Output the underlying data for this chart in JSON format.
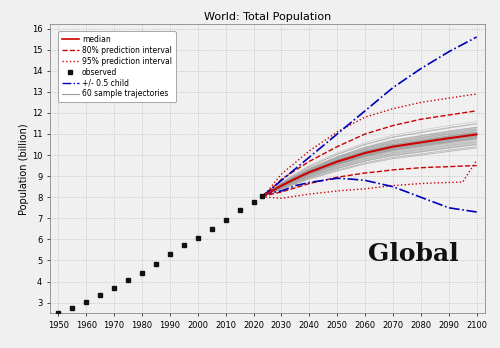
{
  "title": "World: Total Population",
  "ylabel": "Population (billion)",
  "xlim": [
    1947,
    2103
  ],
  "ylim": [
    2.5,
    16.2
  ],
  "xticks": [
    1950,
    1960,
    1970,
    1980,
    1990,
    2000,
    2010,
    2020,
    2030,
    2040,
    2050,
    2060,
    2070,
    2080,
    2090,
    2100
  ],
  "yticks": [
    3,
    4,
    5,
    6,
    7,
    8,
    9,
    10,
    11,
    12,
    13,
    14,
    15,
    16
  ],
  "observed_years": [
    1950,
    1955,
    1960,
    1965,
    1970,
    1975,
    1980,
    1985,
    1990,
    1995,
    2000,
    2005,
    2010,
    2015,
    2020,
    2023
  ],
  "observed_pop": [
    2.53,
    2.77,
    3.02,
    3.34,
    3.7,
    4.07,
    4.43,
    4.83,
    5.31,
    5.72,
    6.09,
    6.51,
    6.92,
    7.38,
    7.79,
    8.04
  ],
  "forecast_years": [
    2023,
    2025,
    2030,
    2035,
    2040,
    2045,
    2050,
    2055,
    2060,
    2065,
    2070,
    2075,
    2080,
    2085,
    2090,
    2095,
    2100
  ],
  "median": [
    8.04,
    8.18,
    8.55,
    8.88,
    9.19,
    9.44,
    9.69,
    9.89,
    10.1,
    10.25,
    10.4,
    10.5,
    10.6,
    10.7,
    10.8,
    10.89,
    10.98
  ],
  "pi80_upper": [
    8.04,
    8.22,
    8.85,
    9.28,
    9.7,
    10.05,
    10.4,
    10.7,
    11.0,
    11.2,
    11.4,
    11.55,
    11.7,
    11.8,
    11.9,
    12.0,
    12.1
  ],
  "pi80_lower": [
    8.04,
    8.1,
    8.25,
    8.45,
    8.65,
    8.8,
    8.95,
    9.05,
    9.15,
    9.22,
    9.3,
    9.35,
    9.4,
    9.43,
    9.45,
    9.48,
    9.5
  ],
  "pi95_upper": [
    8.04,
    8.28,
    9.1,
    9.65,
    10.2,
    10.65,
    11.1,
    11.45,
    11.8,
    12.0,
    12.2,
    12.35,
    12.5,
    12.6,
    12.7,
    12.8,
    12.9
  ],
  "pi95_lower": [
    8.04,
    8.0,
    7.95,
    8.05,
    8.15,
    8.22,
    8.3,
    8.35,
    8.4,
    8.48,
    8.55,
    8.6,
    8.65,
    8.68,
    8.7,
    8.72,
    9.75
  ],
  "blue_upper": [
    8.04,
    8.25,
    8.8,
    9.35,
    9.9,
    10.45,
    11.0,
    11.55,
    12.1,
    12.65,
    13.2,
    13.65,
    14.1,
    14.5,
    14.9,
    15.25,
    15.6
  ],
  "blue_lower": [
    8.04,
    8.18,
    8.3,
    8.55,
    8.7,
    8.8,
    8.9,
    8.86,
    8.8,
    8.65,
    8.5,
    8.25,
    8.0,
    7.75,
    7.5,
    7.4,
    7.3
  ],
  "n_sample": 60,
  "background_color": "#f0f0f0",
  "grid_color": "#bbbbbb",
  "observed_color": "#111111",
  "median_color": "#cc0000",
  "pi80_color": "#cc0000",
  "pi95_color": "#cc0000",
  "blue_color": "#0000bb",
  "sample_color": "#999999",
  "global_text_color": "#111111",
  "global_text_size": 18,
  "title_fontsize": 8,
  "axis_fontsize": 7,
  "tick_fontsize": 6,
  "legend_fontsize": 5.5
}
